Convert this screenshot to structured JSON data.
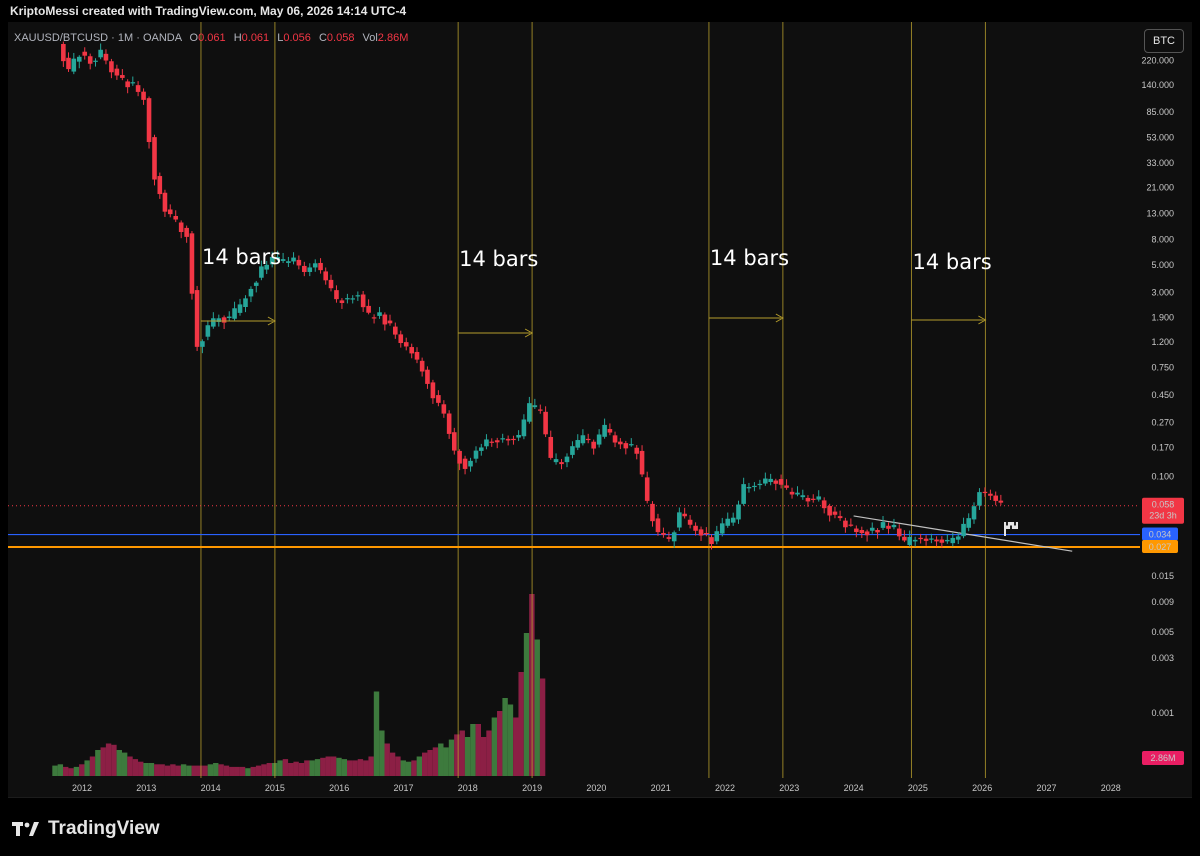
{
  "header": {
    "credit": "KriptoMessi created with TradingView.com, May 06, 2026 14:14 UTC-4"
  },
  "legend": {
    "symbol": "XAUUSD/BTCUSD · 1M · OANDA",
    "open_label": "O",
    "open": "0.061",
    "high_label": "H",
    "high": "0.061",
    "low_label": "L",
    "low": "0.056",
    "close_label": "C",
    "close": "0.058",
    "vol_label": "Vol",
    "vol": "2.86M"
  },
  "toolbar": {
    "currency_button": "BTC"
  },
  "footer": {
    "brand": "TradingView"
  },
  "colors": {
    "background": "#0f0f0f",
    "up": "#26a69a",
    "down": "#f23645",
    "vol_up": "#3d7a3d",
    "vol_down": "#8c1f45",
    "cycle_lines": "#b59d2c",
    "support_blue": "#2962ff",
    "support_orange": "#ff9800",
    "trendline": "#c0c0c0"
  },
  "chart_data": {
    "type": "candlestick",
    "symbol": "XAUUSD/BTCUSD",
    "interval": "1M",
    "exchange": "OANDA",
    "y_scale": "log",
    "ylim": [
      0.027,
      330
    ],
    "price_ticks": [
      "220.000",
      "140.000",
      "85.000",
      "53.000",
      "33.000",
      "21.000",
      "13.000",
      "8.000",
      "5.000",
      "3.000",
      "1.900",
      "1.200",
      "0.750",
      "0.450",
      "0.270",
      "0.170",
      "0.100",
      "0.058",
      "0.034",
      "0.027",
      "0.015",
      "0.009",
      "0.005",
      "0.003",
      "0.001"
    ],
    "x_ticks": [
      "2012",
      "2013",
      "2014",
      "2015",
      "2016",
      "2017",
      "2018",
      "2019",
      "2020",
      "2021",
      "2022",
      "2023",
      "2024",
      "2025",
      "2026",
      "2027",
      "2028"
    ],
    "current_price": {
      "value": "0.058",
      "countdown": "23d 3h"
    },
    "support_levels": [
      {
        "value": "0.034",
        "color": "#2962ff"
      },
      {
        "value": "0.027",
        "color": "#ff9800"
      }
    ],
    "volume_label": "2.86M",
    "annotations": [
      {
        "text": "14 bars",
        "start": 2013.85,
        "end": 2015.0
      },
      {
        "text": "14 bars",
        "start": 2017.85,
        "end": 2019.0
      },
      {
        "text": "14 bars",
        "start": 2021.75,
        "end": 2022.9
      },
      {
        "text": "14 bars",
        "start": 2024.9,
        "end": 2026.05
      }
    ],
    "trendline": {
      "from": {
        "date": 2024.0,
        "value": 0.048
      },
      "to": {
        "date": 2027.4,
        "value": 0.025
      }
    },
    "series": [
      {
        "name": "price",
        "points": [
          [
            2011.67,
            300
          ],
          [
            2011.83,
            180
          ],
          [
            2012.0,
            260
          ],
          [
            2012.17,
            220
          ],
          [
            2012.33,
            250
          ],
          [
            2012.5,
            190
          ],
          [
            2012.67,
            150
          ],
          [
            2012.83,
            140
          ],
          [
            2013.0,
            110
          ],
          [
            2013.17,
            26
          ],
          [
            2013.33,
            14
          ],
          [
            2013.5,
            11
          ],
          [
            2013.67,
            9
          ],
          [
            2013.83,
            1.1
          ],
          [
            2014.0,
            1.6
          ],
          [
            2014.17,
            1.9
          ],
          [
            2014.33,
            1.85
          ],
          [
            2014.5,
            2.3
          ],
          [
            2014.67,
            3.4
          ],
          [
            2014.83,
            4.6
          ],
          [
            2015.0,
            5.6
          ],
          [
            2015.17,
            5.2
          ],
          [
            2015.33,
            5.5
          ],
          [
            2015.5,
            4.4
          ],
          [
            2015.67,
            5.2
          ],
          [
            2015.83,
            3.8
          ],
          [
            2016.0,
            2.6
          ],
          [
            2016.17,
            2.7
          ],
          [
            2016.33,
            2.9
          ],
          [
            2016.5,
            1.9
          ],
          [
            2016.67,
            2.0
          ],
          [
            2016.83,
            1.6
          ],
          [
            2017.0,
            1.2
          ],
          [
            2017.17,
            1.0
          ],
          [
            2017.33,
            0.72
          ],
          [
            2017.5,
            0.45
          ],
          [
            2017.67,
            0.32
          ],
          [
            2017.83,
            0.16
          ],
          [
            2018.0,
            0.12
          ],
          [
            2018.17,
            0.16
          ],
          [
            2018.33,
            0.19
          ],
          [
            2018.5,
            0.2
          ],
          [
            2018.67,
            0.2
          ],
          [
            2018.83,
            0.21
          ],
          [
            2019.0,
            0.36
          ],
          [
            2019.17,
            0.33
          ],
          [
            2019.33,
            0.13
          ],
          [
            2019.5,
            0.13
          ],
          [
            2019.67,
            0.17
          ],
          [
            2019.83,
            0.2
          ],
          [
            2020.0,
            0.18
          ],
          [
            2020.17,
            0.24
          ],
          [
            2020.33,
            0.19
          ],
          [
            2020.5,
            0.18
          ],
          [
            2020.67,
            0.16
          ],
          [
            2020.83,
            0.06
          ],
          [
            2021.0,
            0.035
          ],
          [
            2021.17,
            0.03
          ],
          [
            2021.33,
            0.05
          ],
          [
            2021.5,
            0.04
          ],
          [
            2021.67,
            0.035
          ],
          [
            2021.83,
            0.03
          ],
          [
            2022.0,
            0.04
          ],
          [
            2022.17,
            0.045
          ],
          [
            2022.33,
            0.08
          ],
          [
            2022.5,
            0.085
          ],
          [
            2022.67,
            0.09
          ],
          [
            2022.83,
            0.095
          ],
          [
            2023.0,
            0.075
          ],
          [
            2023.17,
            0.068
          ],
          [
            2023.33,
            0.066
          ],
          [
            2023.5,
            0.064
          ],
          [
            2023.67,
            0.052
          ],
          [
            2023.83,
            0.044
          ],
          [
            2024.0,
            0.038
          ],
          [
            2024.17,
            0.036
          ],
          [
            2024.33,
            0.037
          ],
          [
            2024.5,
            0.04
          ],
          [
            2024.67,
            0.038
          ],
          [
            2024.83,
            0.028
          ],
          [
            2025.0,
            0.032
          ],
          [
            2025.17,
            0.031
          ],
          [
            2025.33,
            0.031
          ],
          [
            2025.5,
            0.029
          ],
          [
            2025.67,
            0.033
          ],
          [
            2025.83,
            0.045
          ],
          [
            2026.0,
            0.075
          ],
          [
            2026.17,
            0.07
          ],
          [
            2026.33,
            0.058
          ]
        ]
      },
      {
        "name": "volume",
        "values": [
          0.8,
          0.9,
          0.7,
          0.6,
          0.7,
          0.9,
          1.2,
          1.5,
          2.0,
          2.2,
          2.5,
          2.4,
          2.0,
          1.8,
          1.5,
          1.3,
          1.1,
          1.0,
          1.0,
          0.9,
          0.9,
          0.8,
          0.9,
          0.8,
          0.9,
          0.8,
          0.8,
          0.8,
          0.8,
          0.9,
          1.0,
          0.9,
          0.8,
          0.7,
          0.7,
          0.7,
          0.6,
          0.7,
          0.8,
          0.9,
          1.0,
          1.0,
          1.2,
          1.3,
          1.0,
          1.1,
          1.0,
          1.2,
          1.2,
          1.3,
          1.4,
          1.5,
          1.5,
          1.4,
          1.3,
          1.2,
          1.2,
          1.3,
          1.2,
          1.5,
          6.5,
          3.5,
          2.5,
          1.8,
          1.5,
          1.2,
          1.1,
          1.2,
          1.5,
          1.8,
          2.0,
          2.2,
          2.5,
          2.2,
          2.8,
          3.2,
          3.5,
          3.0,
          4.0,
          4.0,
          3.0,
          3.5,
          4.5,
          5.0,
          6.0,
          5.5,
          4.5,
          8.0,
          11.0,
          14.0,
          10.5,
          7.5
        ]
      }
    ]
  }
}
